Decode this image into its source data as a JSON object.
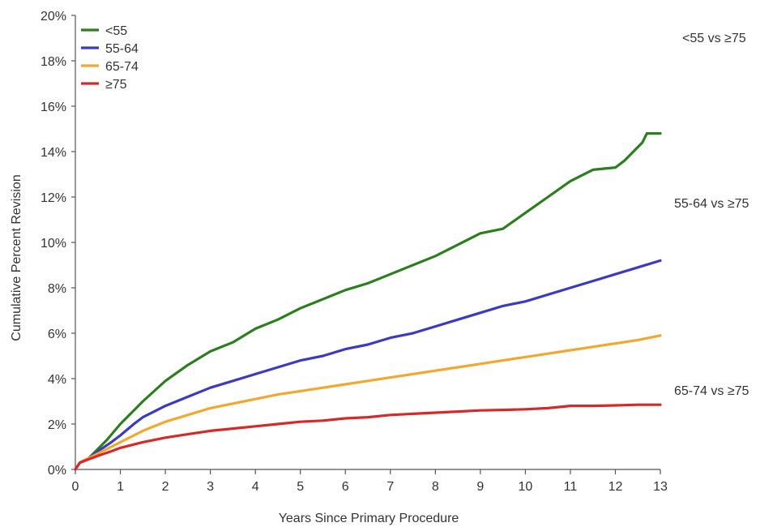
{
  "chart_data": {
    "type": "line",
    "title": "",
    "xlabel": "Years Since Primary Procedure",
    "ylabel": "Cumulative Percent Revision",
    "xlim": [
      0,
      13
    ],
    "ylim": [
      0,
      20
    ],
    "x_ticks": [
      0,
      1,
      2,
      3,
      4,
      5,
      6,
      7,
      8,
      9,
      10,
      11,
      12,
      13
    ],
    "y_ticks": [
      0,
      2,
      4,
      6,
      8,
      10,
      12,
      14,
      16,
      18,
      20
    ],
    "y_tick_labels": [
      "0%",
      "2%",
      "4%",
      "6%",
      "8%",
      "10%",
      "12%",
      "14%",
      "16%",
      "18%",
      "20%"
    ],
    "grid": false,
    "legend_position": "top-left",
    "series": [
      {
        "name": "<55",
        "color": "#2e7d1f",
        "points": [
          [
            0,
            0
          ],
          [
            0.1,
            0.3
          ],
          [
            0.3,
            0.5
          ],
          [
            0.5,
            0.9
          ],
          [
            0.7,
            1.3
          ],
          [
            1,
            2.0
          ],
          [
            1.3,
            2.6
          ],
          [
            1.5,
            3.0
          ],
          [
            2,
            3.9
          ],
          [
            2.5,
            4.6
          ],
          [
            3,
            5.2
          ],
          [
            3.5,
            5.6
          ],
          [
            4,
            6.2
          ],
          [
            4.5,
            6.6
          ],
          [
            5,
            7.1
          ],
          [
            5.5,
            7.5
          ],
          [
            6,
            7.9
          ],
          [
            6.5,
            8.2
          ],
          [
            7,
            8.6
          ],
          [
            7.5,
            9.0
          ],
          [
            8,
            9.4
          ],
          [
            8.5,
            9.9
          ],
          [
            9,
            10.4
          ],
          [
            9.5,
            10.6
          ],
          [
            10,
            11.3
          ],
          [
            10.5,
            12.0
          ],
          [
            11,
            12.7
          ],
          [
            11.5,
            13.2
          ],
          [
            12,
            13.3
          ],
          [
            12.2,
            13.6
          ],
          [
            12.4,
            14.0
          ],
          [
            12.6,
            14.4
          ],
          [
            12.7,
            14.8
          ],
          [
            13,
            14.8
          ]
        ]
      },
      {
        "name": "55-64",
        "color": "#3b3bbf",
        "points": [
          [
            0,
            0
          ],
          [
            0.1,
            0.3
          ],
          [
            0.3,
            0.5
          ],
          [
            0.5,
            0.8
          ],
          [
            0.8,
            1.2
          ],
          [
            1,
            1.5
          ],
          [
            1.3,
            2.0
          ],
          [
            1.5,
            2.3
          ],
          [
            2,
            2.8
          ],
          [
            2.5,
            3.2
          ],
          [
            3,
            3.6
          ],
          [
            3.5,
            3.9
          ],
          [
            4,
            4.2
          ],
          [
            4.5,
            4.5
          ],
          [
            5,
            4.8
          ],
          [
            5.5,
            5.0
          ],
          [
            6,
            5.3
          ],
          [
            6.5,
            5.5
          ],
          [
            7,
            5.8
          ],
          [
            7.5,
            6.0
          ],
          [
            8,
            6.3
          ],
          [
            8.5,
            6.6
          ],
          [
            9,
            6.9
          ],
          [
            9.5,
            7.2
          ],
          [
            10,
            7.4
          ],
          [
            10.5,
            7.7
          ],
          [
            11,
            8.0
          ],
          [
            11.5,
            8.3
          ],
          [
            12,
            8.6
          ],
          [
            12.5,
            8.9
          ],
          [
            13,
            9.2
          ]
        ]
      },
      {
        "name": "65-74",
        "color": "#f0a830",
        "points": [
          [
            0,
            0
          ],
          [
            0.1,
            0.3
          ],
          [
            0.3,
            0.5
          ],
          [
            0.5,
            0.7
          ],
          [
            0.8,
            1.0
          ],
          [
            1,
            1.2
          ],
          [
            1.3,
            1.5
          ],
          [
            1.5,
            1.7
          ],
          [
            2,
            2.1
          ],
          [
            2.5,
            2.4
          ],
          [
            3,
            2.7
          ],
          [
            3.5,
            2.9
          ],
          [
            4,
            3.1
          ],
          [
            4.5,
            3.3
          ],
          [
            5,
            3.45
          ],
          [
            5.5,
            3.6
          ],
          [
            6,
            3.75
          ],
          [
            6.5,
            3.9
          ],
          [
            7,
            4.05
          ],
          [
            7.5,
            4.2
          ],
          [
            8,
            4.35
          ],
          [
            8.5,
            4.5
          ],
          [
            9,
            4.65
          ],
          [
            9.5,
            4.8
          ],
          [
            10,
            4.95
          ],
          [
            10.5,
            5.1
          ],
          [
            11,
            5.25
          ],
          [
            11.5,
            5.4
          ],
          [
            12,
            5.55
          ],
          [
            12.5,
            5.7
          ],
          [
            13,
            5.9
          ]
        ]
      },
      {
        "name": "≥75",
        "color": "#d42a2a",
        "points": [
          [
            0,
            0
          ],
          [
            0.1,
            0.3
          ],
          [
            0.3,
            0.45
          ],
          [
            0.5,
            0.6
          ],
          [
            0.8,
            0.8
          ],
          [
            1,
            0.95
          ],
          [
            1.3,
            1.1
          ],
          [
            1.5,
            1.2
          ],
          [
            2,
            1.4
          ],
          [
            2.5,
            1.55
          ],
          [
            3,
            1.7
          ],
          [
            3.5,
            1.8
          ],
          [
            4,
            1.9
          ],
          [
            4.5,
            2.0
          ],
          [
            5,
            2.1
          ],
          [
            5.5,
            2.15
          ],
          [
            6,
            2.25
          ],
          [
            6.5,
            2.3
          ],
          [
            7,
            2.4
          ],
          [
            7.5,
            2.45
          ],
          [
            8,
            2.5
          ],
          [
            8.5,
            2.55
          ],
          [
            9,
            2.6
          ],
          [
            9.5,
            2.62
          ],
          [
            10,
            2.65
          ],
          [
            10.5,
            2.7
          ],
          [
            11,
            2.8
          ],
          [
            11.5,
            2.8
          ],
          [
            12,
            2.82
          ],
          [
            12.5,
            2.85
          ],
          [
            13,
            2.85
          ]
        ]
      }
    ],
    "annotations": [
      "<55 vs ≥75",
      "55-64 vs ≥75",
      "65-74 vs ≥75"
    ]
  }
}
